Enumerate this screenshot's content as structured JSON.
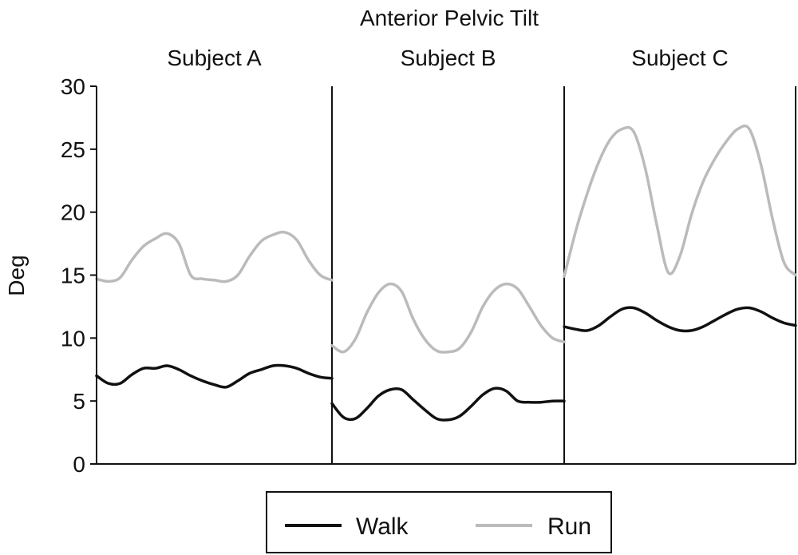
{
  "chart_data": {
    "type": "line",
    "title": "Anterior Pelvic Tilt",
    "ylabel": "Deg",
    "ylim": [
      0,
      30
    ],
    "yticks": [
      0,
      5,
      10,
      15,
      20,
      25,
      30
    ],
    "x_per_panel": [
      0,
      5,
      10,
      15,
      20,
      25,
      30,
      35,
      40,
      45,
      50,
      55,
      60,
      65,
      70,
      75,
      80,
      85,
      90,
      95,
      100
    ],
    "panels": [
      {
        "name": "Subject A",
        "series": [
          {
            "name": "Walk",
            "values": [
              7.0,
              6.4,
              6.4,
              7.1,
              7.6,
              7.6,
              7.8,
              7.5,
              7.0,
              6.6,
              6.3,
              6.1,
              6.6,
              7.2,
              7.5,
              7.8,
              7.8,
              7.6,
              7.2,
              6.9,
              6.8
            ]
          },
          {
            "name": "Run",
            "values": [
              14.7,
              14.5,
              14.8,
              16.2,
              17.3,
              17.9,
              18.3,
              17.5,
              15.0,
              14.7,
              14.6,
              14.5,
              15.0,
              16.5,
              17.7,
              18.2,
              18.4,
              17.8,
              16.2,
              15.0,
              14.6
            ]
          }
        ]
      },
      {
        "name": "Subject B",
        "series": [
          {
            "name": "Walk",
            "values": [
              4.8,
              3.7,
              3.6,
              4.4,
              5.4,
              5.9,
              5.9,
              5.1,
              4.3,
              3.6,
              3.5,
              3.8,
              4.6,
              5.5,
              6.0,
              5.8,
              5.0,
              4.9,
              4.9,
              5.0,
              5.0
            ]
          },
          {
            "name": "Run",
            "values": [
              9.4,
              8.9,
              9.9,
              12.0,
              13.6,
              14.3,
              13.7,
              11.5,
              9.9,
              9.0,
              8.9,
              9.2,
              10.5,
              12.5,
              13.8,
              14.3,
              13.9,
              12.5,
              11.0,
              10.0,
              9.7
            ]
          }
        ]
      },
      {
        "name": "Subject C",
        "series": [
          {
            "name": "Walk",
            "values": [
              10.9,
              10.7,
              10.6,
              11.0,
              11.7,
              12.3,
              12.4,
              12.0,
              11.4,
              10.9,
              10.6,
              10.6,
              10.9,
              11.4,
              11.9,
              12.3,
              12.4,
              12.1,
              11.6,
              11.2,
              11.0
            ]
          },
          {
            "name": "Run",
            "values": [
              14.9,
              18.5,
              21.5,
              24.0,
              25.8,
              26.6,
              26.4,
              23.5,
              19.0,
              15.2,
              16.5,
              19.8,
              22.4,
              24.2,
              25.6,
              26.6,
              26.6,
              23.8,
              19.5,
              16.0,
              15.0
            ]
          }
        ]
      }
    ],
    "legend": {
      "position": "bottom-center",
      "entries": [
        "Walk",
        "Run"
      ]
    },
    "colors": {
      "Walk": "#111111",
      "Run": "#bbbbbb"
    },
    "grid": false
  }
}
